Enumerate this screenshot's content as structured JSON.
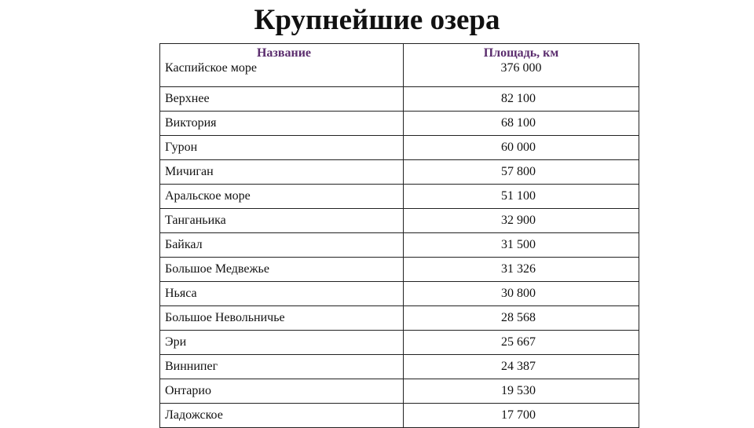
{
  "title": "Крупнейшие озера",
  "table": {
    "headers": [
      "Название",
      "Площадь, км"
    ],
    "rows": [
      [
        "Каспийское море",
        "376 000"
      ],
      [
        "Верхнее",
        "82 100"
      ],
      [
        "Виктория",
        "68 100"
      ],
      [
        "Гурон",
        "60 000"
      ],
      [
        "Мичиган",
        "57 800"
      ],
      [
        "Аральское море",
        "51 100"
      ],
      [
        "Танганьика",
        "32 900"
      ],
      [
        "Байкал",
        "31 500"
      ],
      [
        "Большое Медвежье",
        "31 326"
      ],
      [
        "Ньяса",
        "30 800"
      ],
      [
        "Большое Невольничье",
        "28 568"
      ],
      [
        "Эри",
        "25 667"
      ],
      [
        "Виннипег",
        "24 387"
      ],
      [
        "Онтарио",
        "19 530"
      ],
      [
        "Ладожское",
        "17 700"
      ]
    ]
  },
  "colors": {
    "header": "#5b2d6e"
  }
}
